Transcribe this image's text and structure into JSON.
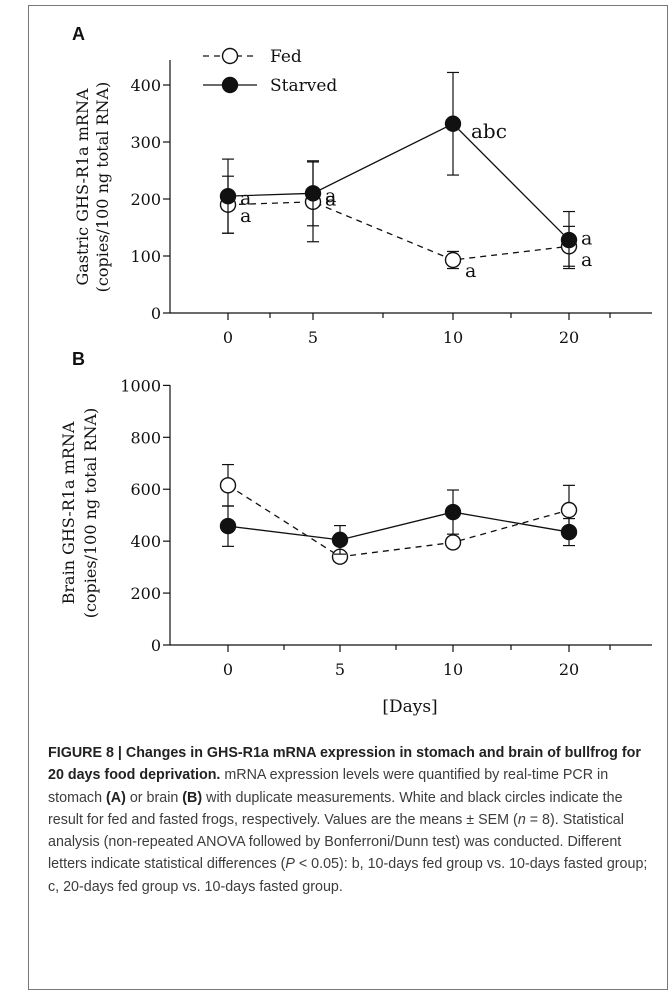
{
  "chart_data": [
    {
      "panel": "A",
      "type": "line",
      "ylabel_line1": "Gastric GHS-R1a mRNA",
      "ylabel_line2": "(copies/100 ng total RNA)",
      "ylim": [
        0,
        450
      ],
      "yticks": [
        0,
        100,
        200,
        300,
        400
      ],
      "categories": [
        "0",
        "5",
        "10",
        "20"
      ],
      "series": [
        {
          "name": "Fed",
          "marker": "open-circle",
          "linestyle": "dashed",
          "values": [
            190,
            195,
            93,
            117
          ],
          "errors": [
            50,
            70,
            15,
            35
          ],
          "labels": [
            "a",
            "a",
            "a",
            "a"
          ]
        },
        {
          "name": "Starved",
          "marker": "filled-circle",
          "linestyle": "solid",
          "values": [
            205,
            210,
            332,
            128
          ],
          "errors": [
            65,
            57,
            90,
            50
          ],
          "labels": [
            "a",
            "a",
            "abc",
            "a"
          ]
        }
      ],
      "legend_placement": "top-left"
    },
    {
      "panel": "B",
      "type": "line",
      "ylabel_line1": "Brain GHS-R1a mRNA",
      "ylabel_line2": "(copies/100 ng total RNA)",
      "xlabel": "[Days]",
      "ylim": [
        0,
        1000
      ],
      "yticks": [
        0,
        200,
        400,
        600,
        800,
        1000
      ],
      "categories": [
        "0",
        "5",
        "10",
        "20"
      ],
      "series": [
        {
          "name": "Fed",
          "marker": "open-circle",
          "linestyle": "dashed",
          "values": [
            615,
            340,
            395,
            520
          ],
          "errors": [
            80,
            15,
            20,
            95
          ]
        },
        {
          "name": "Starved",
          "marker": "filled-circle",
          "linestyle": "solid",
          "values": [
            458,
            405,
            512,
            435
          ],
          "errors": [
            78,
            55,
            85,
            52
          ]
        }
      ]
    }
  ],
  "caption": {
    "figure_label": "FIGURE 8 | Changes in GHS-R1a mRNA expression in stomach and brain of bullfrog for 20 days food deprivation.",
    "text_1": " mRNA expression levels were quantified by real-time PCR in stomach ",
    "bold_a": "(A)",
    "text_2": " or brain ",
    "bold_b": "(B)",
    "text_3": " with duplicate measurements. White and black circles indicate the result for fed and fasted frogs, respectively. Values are the means ± SEM (",
    "italic_n": "n",
    "text_4": " = 8). Statistical analysis (non-repeated ANOVA followed by Bonferroni/Dunn test) was conducted. Different letters indicate statistical differences (",
    "italic_p": "P",
    "text_5": " < 0.05): b, 10-days fed group vs. 10-days fasted group; c, 20-days fed group vs. 10-days fasted group."
  }
}
